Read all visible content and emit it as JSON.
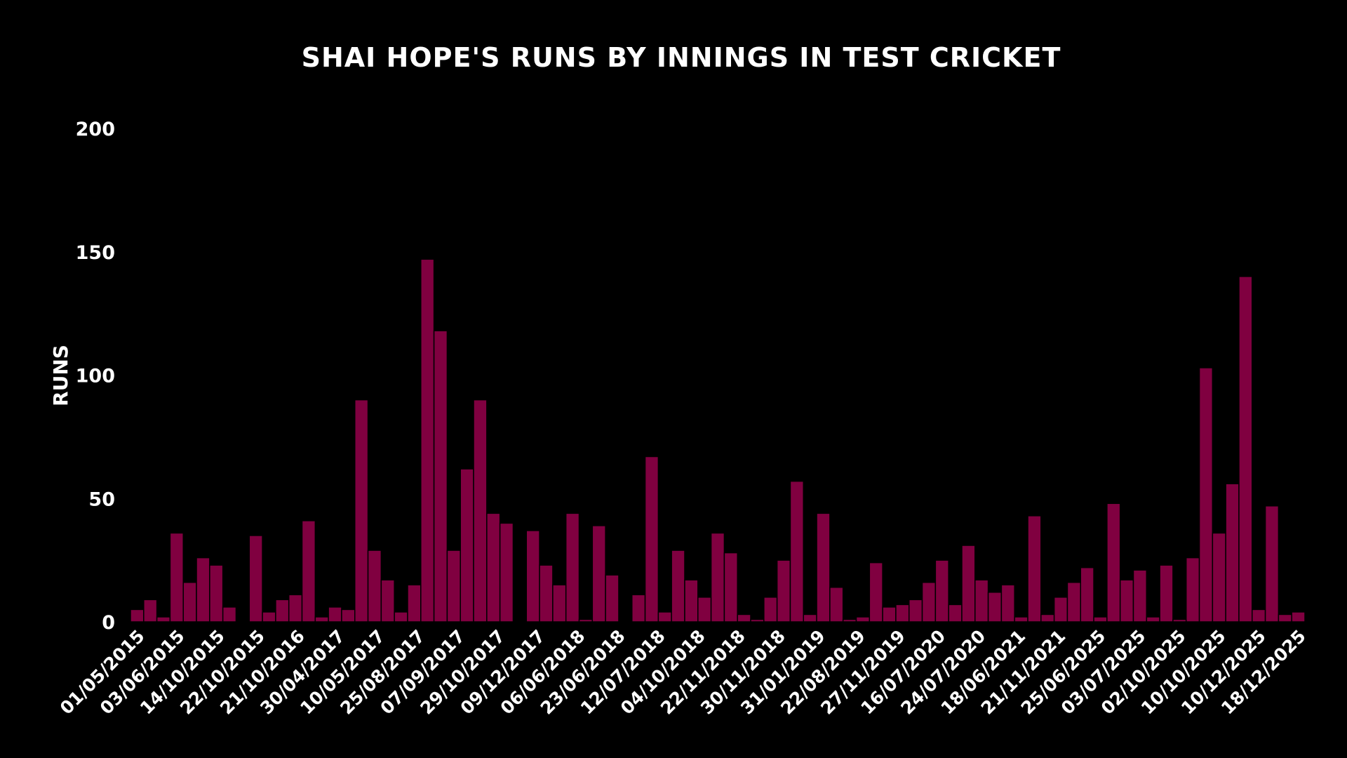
{
  "chart_data": {
    "type": "bar",
    "title": "SHAI HOPE'S RUNS BY INNINGS IN TEST CRICKET",
    "xlabel": "",
    "ylabel": "RUNS",
    "ylim": [
      0,
      200
    ],
    "yticks": [
      0,
      50,
      100,
      150,
      200
    ],
    "grid": false,
    "bar_color": "#800040",
    "bar_edge_color": "#000000",
    "background": "#000000",
    "text_color": "#ffffff",
    "x_tick_labels": [
      "01/05/2015",
      "03/06/2015",
      "14/10/2015",
      "22/10/2015",
      "21/10/2016",
      "30/04/2017",
      "10/05/2017",
      "25/08/2017",
      "07/09/2017",
      "29/10/2017",
      "09/12/2017",
      "06/06/2018",
      "23/06/2018",
      "12/07/2018",
      "04/10/2018",
      "22/11/2018",
      "30/11/2018",
      "31/01/2019",
      "22/08/2019",
      "27/11/2019",
      "16/07/2020",
      "24/07/2020",
      "18/06/2021",
      "21/11/2021",
      "25/06/2025",
      "03/07/2025",
      "02/10/2025",
      "10/10/2025",
      "10/12/2025",
      "18/12/2025"
    ],
    "values": [
      5,
      9,
      2,
      36,
      16,
      26,
      23,
      6,
      0,
      35,
      4,
      9,
      11,
      41,
      2,
      6,
      5,
      90,
      29,
      17,
      4,
      15,
      147,
      118,
      29,
      62,
      90,
      44,
      40,
      0,
      37,
      23,
      15,
      44,
      1,
      39,
      19,
      0,
      11,
      67,
      4,
      29,
      17,
      10,
      36,
      28,
      3,
      1,
      10,
      25,
      57,
      3,
      44,
      14,
      1,
      2,
      24,
      6,
      7,
      9,
      16,
      25,
      7,
      31,
      17,
      12,
      15,
      2,
      43,
      3,
      10,
      16,
      22,
      2,
      48,
      17,
      21,
      2,
      23,
      1,
      26,
      103,
      36,
      56,
      140,
      5,
      47,
      3,
      4
    ]
  }
}
